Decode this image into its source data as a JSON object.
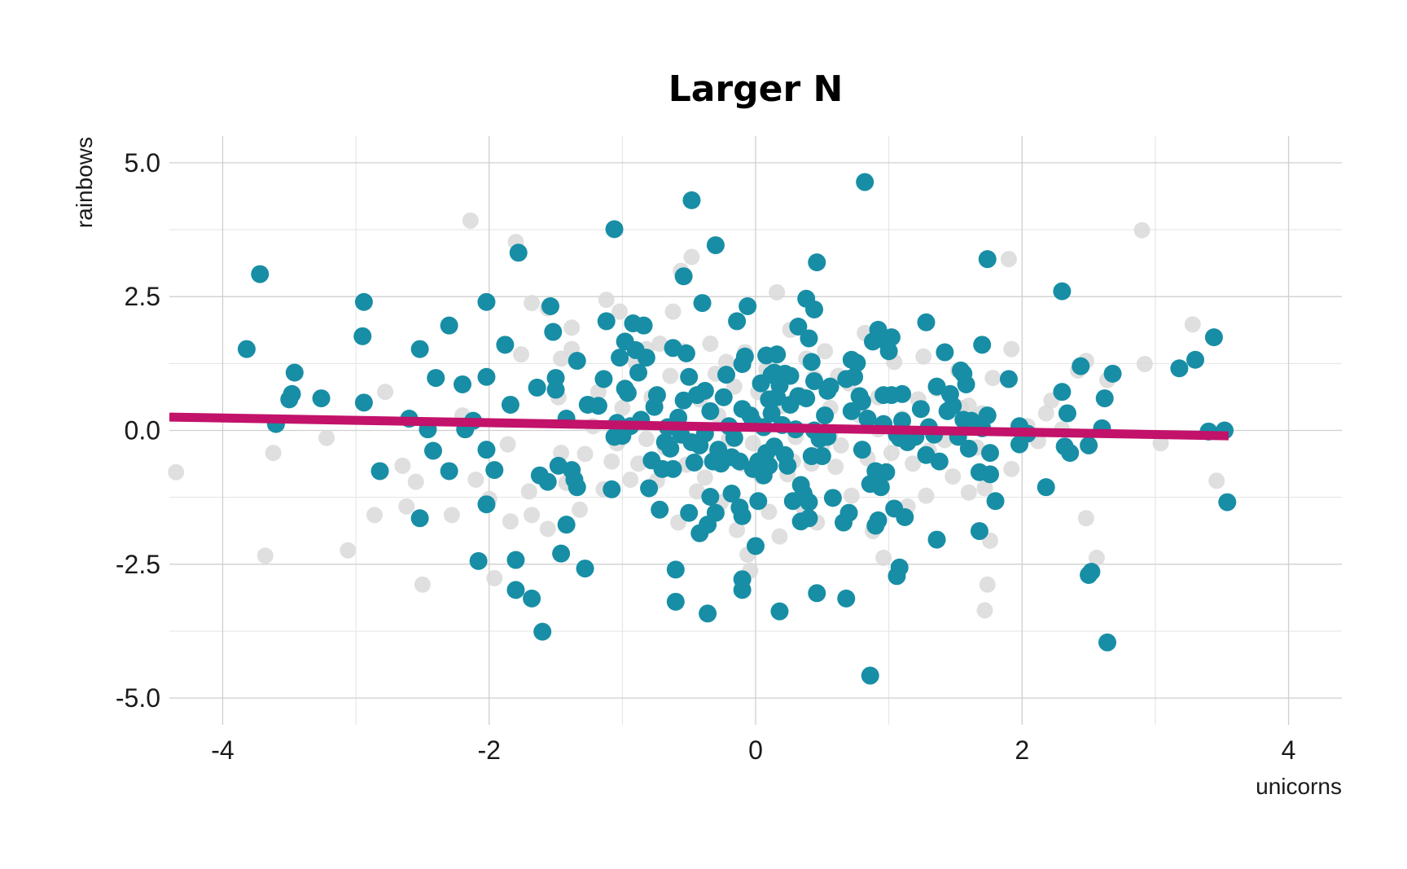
{
  "chart_data": {
    "type": "scatter",
    "title": "Larger N",
    "xlabel": "unicorns",
    "ylabel": "rainbows",
    "xlim": [
      -4.4,
      4.4
    ],
    "ylim": [
      -5.5,
      5.5
    ],
    "x_ticks": [
      {
        "value": -4,
        "label": "-4"
      },
      {
        "value": -2,
        "label": "-2"
      },
      {
        "value": 0,
        "label": "0"
      },
      {
        "value": 2,
        "label": "2"
      },
      {
        "value": 4,
        "label": "4"
      }
    ],
    "y_ticks": [
      {
        "value": 5,
        "label": "5.0"
      },
      {
        "value": 2.5,
        "label": "2.5"
      },
      {
        "value": 0,
        "label": "0.0"
      },
      {
        "value": -2.5,
        "label": "-2.5"
      },
      {
        "value": -5,
        "label": "-5.0"
      }
    ],
    "grid": true,
    "legend": "none",
    "colors": {
      "foreground_points": "#178ea5",
      "background_points": "#d9d9d9",
      "trend_line": "#c2126a"
    },
    "background_points": [
      [
        -4.35,
        -0.78
      ],
      [
        -3.68,
        -2.34
      ],
      [
        -3.62,
        -0.42
      ],
      [
        -3.22,
        -0.14
      ],
      [
        -3.06,
        -2.24
      ],
      [
        -2.78,
        0.72
      ],
      [
        -2.86,
        -1.58
      ],
      [
        -2.65,
        -0.66
      ],
      [
        -2.62,
        -1.42
      ],
      [
        -2.55,
        -0.96
      ],
      [
        -2.5,
        -2.88
      ],
      [
        -2.28,
        -1.58
      ],
      [
        -2.2,
        0.28
      ],
      [
        -2.1,
        -0.92
      ],
      [
        -2.14,
        3.92
      ],
      [
        -2.0,
        -1.28
      ],
      [
        -1.96,
        -2.76
      ],
      [
        -1.86,
        -0.26
      ],
      [
        -1.84,
        -1.7
      ],
      [
        -1.8,
        3.52
      ],
      [
        -1.76,
        1.42
      ],
      [
        -1.7,
        -1.14
      ],
      [
        -1.68,
        2.38
      ],
      [
        -1.68,
        -1.58
      ],
      [
        -1.56,
        -1.84
      ],
      [
        -1.56,
        2.28
      ],
      [
        -1.48,
        0.62
      ],
      [
        -1.46,
        1.34
      ],
      [
        -1.42,
        -0.98
      ],
      [
        -1.38,
        1.92
      ],
      [
        -1.38,
        1.52
      ],
      [
        -1.32,
        -1.48
      ],
      [
        -1.28,
        -0.44
      ],
      [
        -1.22,
        0.08
      ],
      [
        -1.18,
        0.72
      ],
      [
        -1.14,
        -1.1
      ],
      [
        -1.12,
        2.44
      ],
      [
        -1.08,
        -0.58
      ],
      [
        -1.04,
        -0.24
      ],
      [
        -1.02,
        2.22
      ],
      [
        -1.0,
        0.42
      ],
      [
        -0.94,
        -0.92
      ],
      [
        -0.9,
        1.26
      ],
      [
        -0.88,
        -0.62
      ],
      [
        -0.82,
        1.52
      ],
      [
        -0.78,
        0.62
      ],
      [
        -0.74,
        -0.94
      ],
      [
        -0.72,
        1.62
      ],
      [
        -0.68,
        -0.32
      ],
      [
        -0.64,
        1.02
      ],
      [
        -0.62,
        2.22
      ],
      [
        -0.58,
        -1.72
      ],
      [
        -0.56,
        2.98
      ],
      [
        -0.52,
        -0.64
      ],
      [
        -0.48,
        3.24
      ],
      [
        -0.44,
        -1.14
      ],
      [
        -0.42,
        0.58
      ],
      [
        -0.38,
        -0.88
      ],
      [
        -0.34,
        1.62
      ],
      [
        -0.3,
        -0.48
      ],
      [
        -0.28,
        0.28
      ],
      [
        -0.26,
        -1.34
      ],
      [
        -0.22,
        1.28
      ],
      [
        -0.2,
        -0.16
      ],
      [
        -0.16,
        0.82
      ],
      [
        -0.14,
        -1.86
      ],
      [
        -0.1,
        -0.62
      ],
      [
        -0.08,
        1.46
      ],
      [
        -0.06,
        -2.32
      ],
      [
        -0.04,
        -2.62
      ],
      [
        -0.02,
        -0.24
      ],
      [
        0.02,
        0.72
      ],
      [
        0.04,
        -0.86
      ],
      [
        0.08,
        1.14
      ],
      [
        0.1,
        -1.52
      ],
      [
        0.14,
        -0.34
      ],
      [
        0.16,
        2.58
      ],
      [
        0.18,
        -1.98
      ],
      [
        0.2,
        0.46
      ],
      [
        0.24,
        -0.82
      ],
      [
        0.26,
        1.88
      ],
      [
        0.3,
        -0.12
      ],
      [
        0.34,
        0.66
      ],
      [
        0.36,
        -1.44
      ],
      [
        0.38,
        1.34
      ],
      [
        0.42,
        -0.62
      ],
      [
        0.44,
        0.98
      ],
      [
        0.46,
        -1.72
      ],
      [
        0.5,
        -0.28
      ],
      [
        0.52,
        1.48
      ],
      [
        0.56,
        0.42
      ],
      [
        0.6,
        -0.68
      ],
      [
        0.62,
        1.02
      ],
      [
        0.64,
        -0.28
      ],
      [
        0.7,
        0.88
      ],
      [
        0.72,
        -1.22
      ],
      [
        0.78,
        0.28
      ],
      [
        0.82,
        1.82
      ],
      [
        0.84,
        -0.52
      ],
      [
        0.88,
        -1.88
      ],
      [
        0.92,
        0.62
      ],
      [
        0.96,
        -2.38
      ],
      [
        1.02,
        -0.42
      ],
      [
        1.04,
        1.28
      ],
      [
        1.1,
        0.22
      ],
      [
        1.14,
        -1.42
      ],
      [
        1.18,
        -0.62
      ],
      [
        1.22,
        0.58
      ],
      [
        1.26,
        1.38
      ],
      [
        1.28,
        -1.22
      ],
      [
        1.3,
        -0.38
      ],
      [
        1.36,
        0.78
      ],
      [
        1.42,
        -0.18
      ],
      [
        1.48,
        -0.86
      ],
      [
        1.52,
        1.12
      ],
      [
        1.54,
        0.42
      ],
      [
        1.6,
        -1.16
      ],
      [
        1.66,
        -0.32
      ],
      [
        1.7,
        0.32
      ],
      [
        1.72,
        -1.08
      ],
      [
        1.74,
        -2.88
      ],
      [
        1.72,
        -3.36
      ],
      [
        1.76,
        -2.06
      ],
      [
        1.78,
        0.98
      ],
      [
        1.9,
        3.2
      ],
      [
        1.92,
        1.52
      ],
      [
        1.92,
        -0.72
      ],
      [
        2.04,
        0.08
      ],
      [
        2.12,
        -0.2
      ],
      [
        2.18,
        0.32
      ],
      [
        2.22,
        0.56
      ],
      [
        2.3,
        0.02
      ],
      [
        2.42,
        1.12
      ],
      [
        2.48,
        1.3
      ],
      [
        2.48,
        -1.64
      ],
      [
        2.56,
        -2.38
      ],
      [
        2.64,
        0.94
      ],
      [
        2.9,
        3.74
      ],
      [
        2.92,
        1.24
      ],
      [
        3.04,
        -0.24
      ],
      [
        3.28,
        1.98
      ],
      [
        3.46,
        -0.94
      ],
      [
        -0.54,
        1.48
      ],
      [
        0.56,
        -0.06
      ],
      [
        1.6,
        0.46
      ],
      [
        -1.46,
        -0.42
      ],
      [
        -0.82,
        -0.16
      ],
      [
        0.28,
        -0.58
      ],
      [
        0.92,
        0.02
      ],
      [
        -0.3,
        1.06
      ]
    ],
    "points": [
      [
        -3.72,
        2.92
      ],
      [
        -3.82,
        1.52
      ],
      [
        -3.6,
        0.12
      ],
      [
        -3.46,
        1.08
      ],
      [
        -3.48,
        0.68
      ],
      [
        -3.5,
        0.58
      ],
      [
        -3.26,
        0.6
      ],
      [
        -2.94,
        2.4
      ],
      [
        -2.95,
        1.76
      ],
      [
        -2.94,
        0.52
      ],
      [
        -2.82,
        -0.76
      ],
      [
        -2.6,
        0.22
      ],
      [
        -2.52,
        1.52
      ],
      [
        -2.52,
        -1.64
      ],
      [
        -2.46,
        0.02
      ],
      [
        -2.42,
        -0.38
      ],
      [
        -2.4,
        0.98
      ],
      [
        -2.3,
        1.96
      ],
      [
        -2.3,
        -0.76
      ],
      [
        -2.2,
        0.86
      ],
      [
        -2.18,
        0.02
      ],
      [
        -2.12,
        0.18
      ],
      [
        -2.08,
        -2.44
      ],
      [
        -2.02,
        1.0
      ],
      [
        -2.02,
        -0.36
      ],
      [
        -2.02,
        -1.38
      ],
      [
        -2.02,
        2.4
      ],
      [
        -1.96,
        -0.74
      ],
      [
        -1.88,
        1.6
      ],
      [
        -1.84,
        0.48
      ],
      [
        -1.8,
        -2.42
      ],
      [
        -1.8,
        -2.98
      ],
      [
        -1.78,
        3.32
      ],
      [
        -1.68,
        -3.14
      ],
      [
        -1.64,
        0.8
      ],
      [
        -1.62,
        -0.84
      ],
      [
        -1.6,
        -3.76
      ],
      [
        -1.56,
        -0.96
      ],
      [
        -1.54,
        2.32
      ],
      [
        -1.52,
        1.84
      ],
      [
        -1.5,
        0.98
      ],
      [
        -1.5,
        0.76
      ],
      [
        -1.48,
        -0.66
      ],
      [
        -1.46,
        -2.3
      ],
      [
        -1.42,
        -1.76
      ],
      [
        -1.42,
        0.22
      ],
      [
        -1.38,
        -0.74
      ],
      [
        -1.36,
        -0.92
      ],
      [
        -1.34,
        1.3
      ],
      [
        -1.34,
        -1.06
      ],
      [
        -1.28,
        -2.58
      ],
      [
        -1.26,
        0.48
      ],
      [
        -1.18,
        0.46
      ],
      [
        -1.12,
        2.04
      ],
      [
        -1.14,
        0.96
      ],
      [
        -1.08,
        -1.1
      ],
      [
        -1.06,
        3.76
      ],
      [
        -1.06,
        -0.12
      ],
      [
        -1.04,
        0.14
      ],
      [
        -1.02,
        1.36
      ],
      [
        -1.0,
        -0.1
      ],
      [
        -0.98,
        1.66
      ],
      [
        -0.98,
        0.78
      ],
      [
        -0.96,
        0.7
      ],
      [
        -0.94,
        0.08
      ],
      [
        -0.92,
        2.0
      ],
      [
        -0.9,
        1.5
      ],
      [
        -0.88,
        1.08
      ],
      [
        -0.86,
        0.2
      ],
      [
        -0.84,
        1.96
      ],
      [
        -0.82,
        1.36
      ],
      [
        -0.8,
        -1.08
      ],
      [
        -0.78,
        -0.56
      ],
      [
        -0.76,
        0.44
      ],
      [
        -0.74,
        0.66
      ],
      [
        -0.72,
        -1.48
      ],
      [
        -0.7,
        -0.72
      ],
      [
        -0.68,
        -0.22
      ],
      [
        -0.66,
        0.06
      ],
      [
        -0.64,
        -0.34
      ],
      [
        -0.62,
        1.54
      ],
      [
        -0.62,
        -0.72
      ],
      [
        -0.6,
        -2.6
      ],
      [
        -0.6,
        -3.2
      ],
      [
        -0.58,
        0.24
      ],
      [
        -0.56,
        -0.08
      ],
      [
        -0.54,
        2.88
      ],
      [
        -0.54,
        0.56
      ],
      [
        -0.52,
        1.44
      ],
      [
        -0.5,
        1.0
      ],
      [
        -0.5,
        -1.54
      ],
      [
        -0.48,
        -0.22
      ],
      [
        -0.48,
        4.3
      ],
      [
        -0.46,
        -0.6
      ],
      [
        -0.44,
        0.66
      ],
      [
        -0.42,
        -0.28
      ],
      [
        -0.42,
        -1.92
      ],
      [
        -0.4,
        2.38
      ],
      [
        -0.38,
        -0.06
      ],
      [
        -0.38,
        0.74
      ],
      [
        -0.36,
        -1.76
      ],
      [
        -0.36,
        -3.42
      ],
      [
        -0.34,
        -1.24
      ],
      [
        -0.34,
        0.36
      ],
      [
        -0.32,
        -0.58
      ],
      [
        -0.3,
        -1.54
      ],
      [
        -0.3,
        3.46
      ],
      [
        -0.28,
        -0.36
      ],
      [
        -0.26,
        -0.62
      ],
      [
        -0.24,
        0.62
      ],
      [
        -0.22,
        1.04
      ],
      [
        -0.2,
        0.08
      ],
      [
        -0.18,
        -0.5
      ],
      [
        -0.18,
        -1.18
      ],
      [
        -0.16,
        -0.14
      ],
      [
        -0.14,
        2.04
      ],
      [
        -0.12,
        -1.44
      ],
      [
        -0.12,
        -0.58
      ],
      [
        -0.1,
        0.4
      ],
      [
        -0.1,
        1.24
      ],
      [
        -0.1,
        -1.6
      ],
      [
        -0.1,
        -2.78
      ],
      [
        -0.1,
        -2.98
      ],
      [
        -0.08,
        1.38
      ],
      [
        -0.06,
        2.32
      ],
      [
        -0.04,
        0.28
      ],
      [
        -0.02,
        -0.72
      ],
      [
        -0.02,
        0.16
      ],
      [
        0.0,
        -2.16
      ],
      [
        0.02,
        -0.58
      ],
      [
        0.02,
        -1.32
      ],
      [
        0.04,
        0.88
      ],
      [
        0.06,
        0.06
      ],
      [
        0.06,
        -0.84
      ],
      [
        0.08,
        1.4
      ],
      [
        0.08,
        -0.42
      ],
      [
        0.1,
        0.58
      ],
      [
        0.1,
        -0.66
      ],
      [
        0.12,
        1.04
      ],
      [
        0.12,
        0.32
      ],
      [
        0.14,
        1.08
      ],
      [
        0.14,
        -0.3
      ],
      [
        0.16,
        0.62
      ],
      [
        0.16,
        1.42
      ],
      [
        0.18,
        -3.38
      ],
      [
        0.18,
        0.84
      ],
      [
        0.2,
        0.1
      ],
      [
        0.22,
        1.06
      ],
      [
        0.22,
        -0.46
      ],
      [
        0.24,
        -0.66
      ],
      [
        0.26,
        0.48
      ],
      [
        0.26,
        1.02
      ],
      [
        0.28,
        -1.32
      ],
      [
        0.3,
        0.02
      ],
      [
        0.32,
        1.94
      ],
      [
        0.32,
        0.64
      ],
      [
        0.34,
        -1.02
      ],
      [
        0.34,
        -1.7
      ],
      [
        0.36,
        -1.18
      ],
      [
        0.38,
        0.6
      ],
      [
        0.38,
        2.46
      ],
      [
        0.4,
        -1.34
      ],
      [
        0.4,
        -1.64
      ],
      [
        0.4,
        1.72
      ],
      [
        0.42,
        1.28
      ],
      [
        0.42,
        -0.48
      ],
      [
        0.44,
        0.92
      ],
      [
        0.44,
        2.26
      ],
      [
        0.44,
        0.0
      ],
      [
        0.46,
        3.14
      ],
      [
        0.46,
        -3.04
      ],
      [
        0.48,
        -0.16
      ],
      [
        0.5,
        -0.48
      ],
      [
        0.52,
        0.28
      ],
      [
        0.54,
        -0.12
      ],
      [
        0.54,
        0.74
      ],
      [
        0.56,
        0.82
      ],
      [
        0.58,
        -1.26
      ],
      [
        0.66,
        -1.72
      ],
      [
        0.68,
        0.96
      ],
      [
        0.68,
        -3.14
      ],
      [
        0.7,
        -1.54
      ],
      [
        0.72,
        1.32
      ],
      [
        0.72,
        0.36
      ],
      [
        0.74,
        1.0
      ],
      [
        0.76,
        1.26
      ],
      [
        0.78,
        0.64
      ],
      [
        0.8,
        -0.36
      ],
      [
        0.8,
        0.54
      ],
      [
        0.82,
        4.64
      ],
      [
        0.84,
        0.22
      ],
      [
        0.86,
        -4.58
      ],
      [
        0.86,
        -1.0
      ],
      [
        0.88,
        1.66
      ],
      [
        0.9,
        -0.76
      ],
      [
        0.9,
        -1.78
      ],
      [
        0.92,
        1.88
      ],
      [
        0.92,
        -1.68
      ],
      [
        0.94,
        -1.06
      ],
      [
        0.96,
        0.66
      ],
      [
        0.96,
        0.12
      ],
      [
        0.98,
        1.66
      ],
      [
        0.98,
        -0.78
      ],
      [
        1.0,
        1.48
      ],
      [
        1.02,
        1.74
      ],
      [
        1.02,
        0.66
      ],
      [
        1.04,
        -1.46
      ],
      [
        1.06,
        -0.08
      ],
      [
        1.06,
        -2.72
      ],
      [
        1.08,
        -2.56
      ],
      [
        1.08,
        -0.14
      ],
      [
        1.1,
        0.18
      ],
      [
        1.1,
        0.68
      ],
      [
        1.12,
        -1.62
      ],
      [
        1.14,
        -0.22
      ],
      [
        1.2,
        -0.12
      ],
      [
        1.24,
        0.4
      ],
      [
        1.28,
        -0.46
      ],
      [
        1.28,
        2.02
      ],
      [
        1.3,
        0.06
      ],
      [
        1.34,
        -0.08
      ],
      [
        1.36,
        -2.04
      ],
      [
        1.36,
        0.82
      ],
      [
        1.38,
        -0.58
      ],
      [
        1.42,
        1.46
      ],
      [
        1.44,
        0.36
      ],
      [
        1.46,
        0.68
      ],
      [
        1.48,
        0.46
      ],
      [
        1.52,
        -0.12
      ],
      [
        1.54,
        1.12
      ],
      [
        1.56,
        0.2
      ],
      [
        1.56,
        1.06
      ],
      [
        1.58,
        0.86
      ],
      [
        1.6,
        -0.34
      ],
      [
        1.62,
        0.18
      ],
      [
        1.68,
        -1.88
      ],
      [
        1.68,
        -0.78
      ],
      [
        1.7,
        0.04
      ],
      [
        1.7,
        1.6
      ],
      [
        1.74,
        0.28
      ],
      [
        1.74,
        3.2
      ],
      [
        1.76,
        -0.42
      ],
      [
        1.76,
        -0.82
      ],
      [
        1.8,
        -1.32
      ],
      [
        1.9,
        0.96
      ],
      [
        1.98,
        0.08
      ],
      [
        1.98,
        -0.26
      ],
      [
        2.04,
        -0.06
      ],
      [
        2.18,
        -1.06
      ],
      [
        2.3,
        2.6
      ],
      [
        2.3,
        0.72
      ],
      [
        2.32,
        -0.3
      ],
      [
        2.34,
        0.32
      ],
      [
        2.36,
        -0.42
      ],
      [
        2.44,
        1.2
      ],
      [
        2.5,
        -0.28
      ],
      [
        2.5,
        -2.7
      ],
      [
        2.52,
        -2.64
      ],
      [
        2.6,
        0.04
      ],
      [
        2.62,
        0.6
      ],
      [
        2.64,
        -3.96
      ],
      [
        2.68,
        1.06
      ],
      [
        3.18,
        1.16
      ],
      [
        3.3,
        1.32
      ],
      [
        3.4,
        -0.02
      ],
      [
        3.44,
        1.74
      ],
      [
        3.52,
        0.0
      ],
      [
        3.54,
        -1.34
      ]
    ],
    "trend": {
      "x": [
        -4.4,
        3.55
      ],
      "y": [
        0.25,
        -0.1
      ]
    }
  }
}
